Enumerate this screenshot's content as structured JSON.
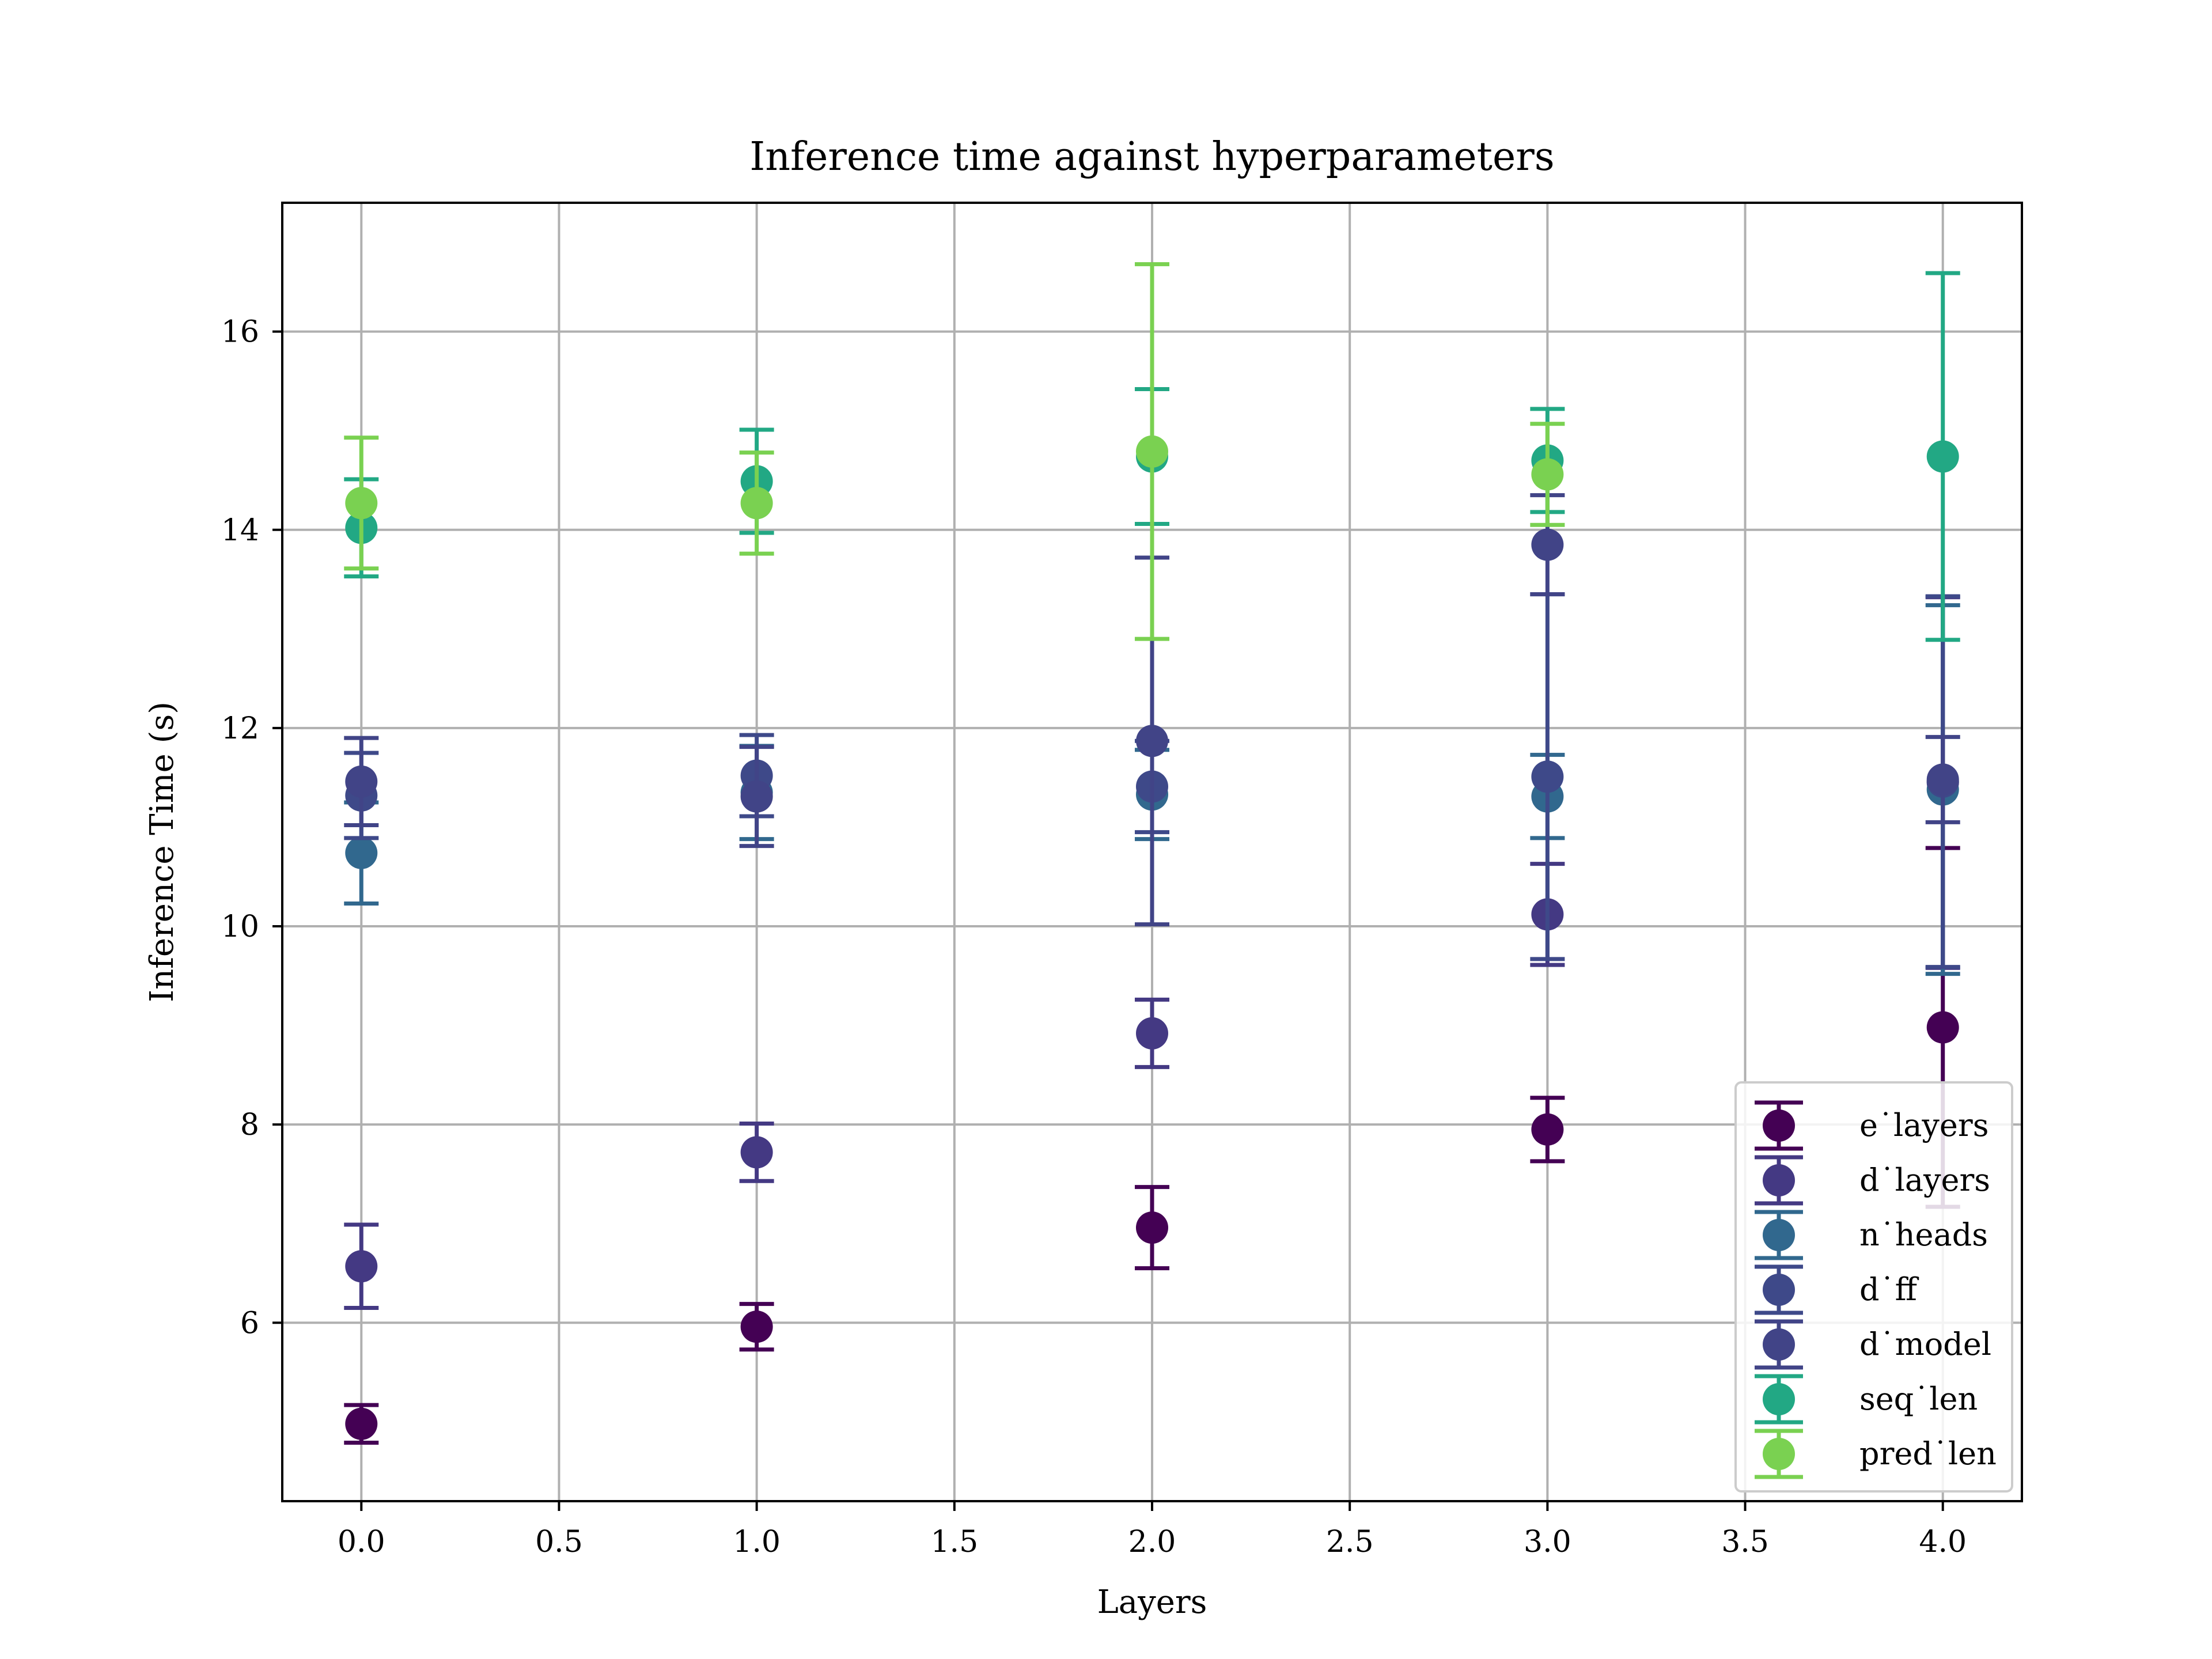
{
  "chart_data": {
    "type": "scatter",
    "title": "Inference time against hyperparameters",
    "xlabel": "Layers",
    "ylabel": "Inference Time (s)",
    "xlim": [
      -0.2,
      4.2
    ],
    "ylim": [
      4.2,
      17.3
    ],
    "x_ticks": [
      0.0,
      0.5,
      1.0,
      1.5,
      2.0,
      2.5,
      3.0,
      3.5,
      4.0
    ],
    "x_tick_labels": [
      "0.0",
      "0.5",
      "1.0",
      "1.5",
      "2.0",
      "2.5",
      "3.0",
      "3.5",
      "4.0"
    ],
    "y_ticks": [
      6,
      8,
      10,
      12,
      14,
      16
    ],
    "y_tick_labels": [
      "6",
      "8",
      "10",
      "12",
      "14",
      "16"
    ],
    "grid": true,
    "legend_position": "lower right",
    "error_bars": true,
    "x": [
      0,
      1,
      2,
      3,
      4
    ],
    "series": [
      {
        "name": "e˙layers",
        "color": "#440154",
        "values": [
          4.98,
          5.96,
          6.96,
          7.95,
          8.98
        ],
        "lower": [
          4.79,
          5.73,
          6.55,
          7.63,
          7.17
        ],
        "upper": [
          5.17,
          6.19,
          7.37,
          8.27,
          10.79
        ]
      },
      {
        "name": "d˙layers",
        "color": "#443983",
        "values": [
          6.57,
          7.72,
          8.92,
          10.12,
          11.45
        ],
        "lower": [
          6.15,
          7.43,
          8.58,
          9.61,
          9.58
        ],
        "upper": [
          6.99,
          8.01,
          9.26,
          10.63,
          13.32
        ]
      },
      {
        "name": "n˙heads",
        "color": "#31688e",
        "values": [
          10.74,
          11.35,
          11.33,
          11.31,
          11.38
        ],
        "lower": [
          10.23,
          10.88,
          10.88,
          10.89,
          9.52
        ],
        "upper": [
          11.25,
          11.82,
          11.78,
          11.73,
          13.24
        ]
      },
      {
        "name": "d˙ff",
        "color": "#3e4989",
        "values": [
          11.32,
          11.52,
          11.41,
          11.51,
          11.46
        ],
        "lower": [
          10.89,
          11.11,
          10.95,
          9.67,
          9.59
        ],
        "upper": [
          11.75,
          11.93,
          11.87,
          13.35,
          13.33
        ]
      },
      {
        "name": "d˙model",
        "color": "#414487",
        "values": [
          11.46,
          11.31,
          11.87,
          13.85,
          11.48
        ],
        "lower": [
          11.02,
          10.81,
          10.02,
          13.35,
          11.05
        ],
        "upper": [
          11.9,
          11.81,
          13.72,
          14.35,
          11.91
        ]
      },
      {
        "name": "seq˙len",
        "color": "#22a884",
        "values": [
          14.02,
          14.49,
          14.74,
          14.7,
          14.74
        ],
        "lower": [
          13.53,
          13.97,
          14.06,
          14.18,
          12.89
        ],
        "upper": [
          14.51,
          15.01,
          15.42,
          15.22,
          16.59
        ]
      },
      {
        "name": "pred˙len",
        "color": "#7ad151",
        "values": [
          14.27,
          14.27,
          14.79,
          14.56,
          null
        ],
        "lower": [
          13.61,
          13.76,
          12.9,
          14.05,
          null
        ],
        "upper": [
          14.93,
          14.78,
          16.68,
          15.07,
          null
        ]
      }
    ]
  }
}
